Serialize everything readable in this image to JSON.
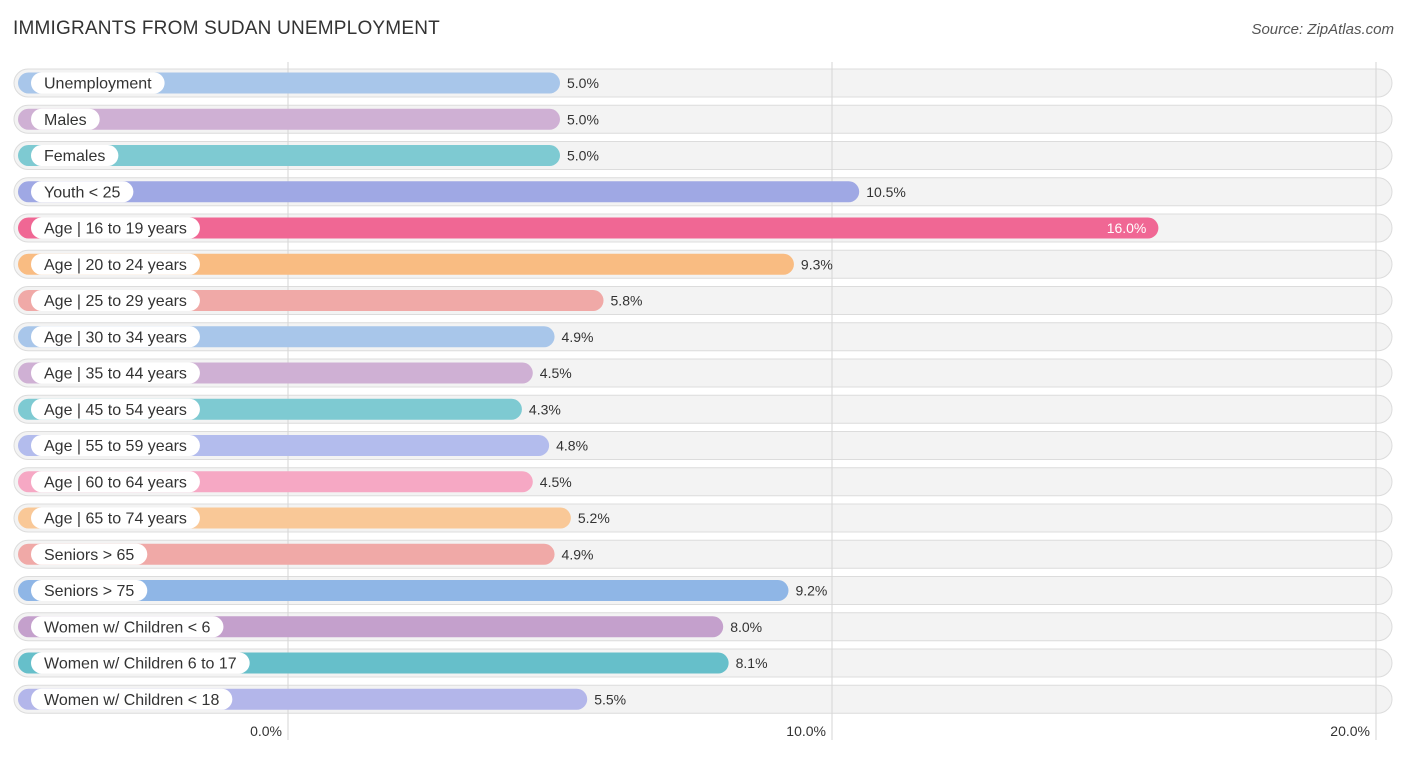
{
  "header": {
    "title": "IMMIGRANTS FROM SUDAN UNEMPLOYMENT",
    "source": "Source: ZipAtlas.com"
  },
  "chart_data": {
    "type": "bar",
    "orientation": "horizontal",
    "title": "IMMIGRANTS FROM SUDAN UNEMPLOYMENT",
    "xlim": [
      0,
      20
    ],
    "ticks": [
      0,
      10,
      20
    ],
    "tick_labels": [
      "0.0%",
      "10.0%",
      "20.0%"
    ],
    "unit": "%",
    "categories": [
      "Unemployment",
      "Males",
      "Females",
      "Youth < 25",
      "Age | 16 to 19 years",
      "Age | 20 to 24 years",
      "Age | 25 to 29 years",
      "Age | 30 to 34 years",
      "Age | 35 to 44 years",
      "Age | 45 to 54 years",
      "Age | 55 to 59 years",
      "Age | 60 to 64 years",
      "Age | 65 to 74 years",
      "Seniors > 65",
      "Seniors > 75",
      "Women w/ Children < 6",
      "Women w/ Children 6 to 17",
      "Women w/ Children < 18"
    ],
    "values": [
      5.0,
      5.0,
      5.0,
      10.5,
      16.0,
      9.3,
      5.8,
      4.9,
      4.5,
      4.3,
      4.8,
      4.5,
      5.2,
      4.9,
      9.2,
      8.0,
      8.1,
      5.5
    ],
    "value_labels": [
      "5.0%",
      "5.0%",
      "5.0%",
      "10.5%",
      "16.0%",
      "9.3%",
      "5.8%",
      "4.9%",
      "4.5%",
      "4.3%",
      "4.8%",
      "4.5%",
      "5.2%",
      "4.9%",
      "9.2%",
      "8.0%",
      "8.1%",
      "5.5%"
    ],
    "colors": [
      "#a8c6ea",
      "#cfb0d4",
      "#7ecad2",
      "#9fa8e4",
      "#f06794",
      "#f9bc82",
      "#f0a9a7",
      "#a8c6ea",
      "#cfb0d4",
      "#7ecad2",
      "#b3bced",
      "#f6a8c4",
      "#f9c897",
      "#f0a9a7",
      "#8fb6e6",
      "#c4a0cc",
      "#66bfca",
      "#b3b6ea"
    ],
    "highlight_index": 4,
    "grid": true,
    "legend": "none"
  }
}
